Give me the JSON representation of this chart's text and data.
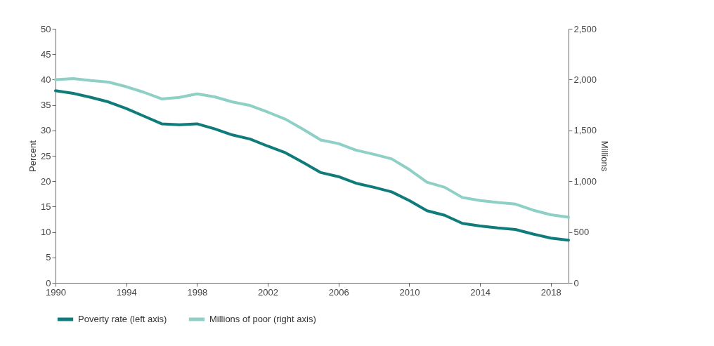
{
  "chart_data": {
    "type": "line",
    "x": [
      1990,
      1991,
      1992,
      1993,
      1994,
      1995,
      1996,
      1997,
      1998,
      1999,
      2000,
      2001,
      2002,
      2003,
      2004,
      2005,
      2006,
      2007,
      2008,
      2009,
      2010,
      2011,
      2012,
      2013,
      2014,
      2015,
      2016,
      2017,
      2018,
      2019
    ],
    "series": [
      {
        "name": "Poverty rate (left axis)",
        "color": "#0f7b7b",
        "values": [
          37.8,
          37.3,
          36.5,
          35.6,
          34.3,
          32.8,
          31.3,
          31.1,
          31.3,
          30.3,
          29.1,
          28.3,
          26.9,
          25.6,
          23.7,
          21.7,
          20.9,
          19.6,
          18.8,
          17.9,
          16.2,
          14.2,
          13.3,
          11.7,
          11.2,
          10.8,
          10.5,
          9.6,
          8.8,
          8.4
        ]
      },
      {
        "name": "Millions of poor (right axis)",
        "color": "#8ecfc6",
        "axis": "y2",
        "values": [
          2000,
          2010,
          1990,
          1975,
          1930,
          1875,
          1810,
          1825,
          1860,
          1830,
          1780,
          1745,
          1680,
          1610,
          1510,
          1405,
          1370,
          1305,
          1265,
          1220,
          1115,
          990,
          940,
          840,
          810,
          790,
          775,
          715,
          670,
          645
        ]
      }
    ],
    "ylabel": "Percent",
    "y2label": "Millions",
    "xlim": [
      1990,
      2019
    ],
    "xticks": [
      1990,
      1994,
      1998,
      2002,
      2006,
      2010,
      2014,
      2018
    ],
    "ylim": [
      0,
      50
    ],
    "yticks": [
      0,
      5,
      10,
      15,
      20,
      25,
      30,
      35,
      40,
      45,
      50
    ],
    "y2lim": [
      0,
      2500
    ],
    "y2ticks": [
      0,
      {
        "value": 500,
        "label": "500"
      },
      {
        "value": 1000,
        "label": "1,000"
      },
      {
        "value": 1500,
        "label": "1,500"
      },
      {
        "value": 2000,
        "label": "2,000"
      },
      {
        "value": 2500,
        "label": "2,500"
      }
    ],
    "legend": "bottom",
    "grid": false
  }
}
